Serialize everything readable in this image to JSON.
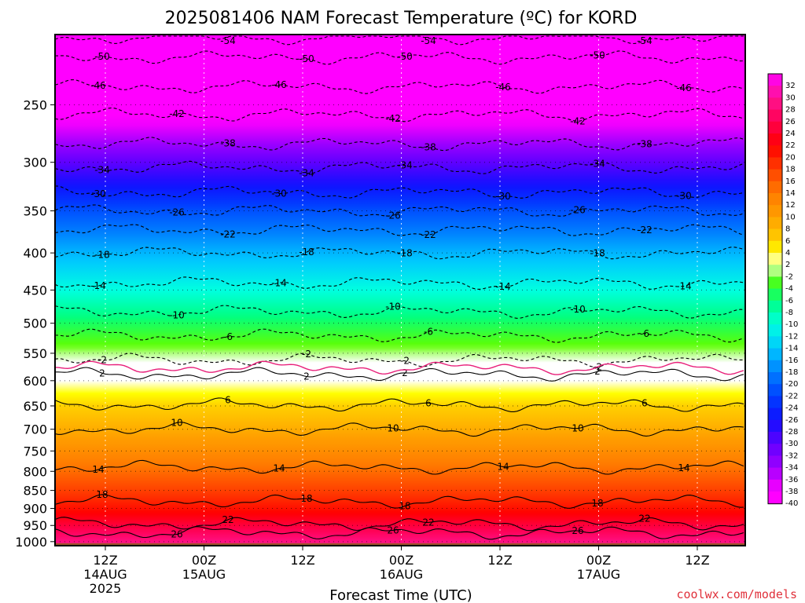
{
  "chart_data": {
    "type": "heatmap",
    "title": "2025081406 NAM Forecast Temperature (ºC) for KORD",
    "xlabel": "Forecast Time (UTC)",
    "ylabel": "",
    "credit": "coolwx.com/models",
    "y_axis": {
      "scale": "log-pressure",
      "range_hpa": [
        1013,
        200
      ],
      "ticks": [
        "250",
        "300",
        "350",
        "400",
        "450",
        "500",
        "550",
        "600",
        "650",
        "700",
        "750",
        "800",
        "850",
        "900",
        "950",
        "1000"
      ]
    },
    "x_axis": {
      "ticks": [
        {
          "time": "12Z",
          "date": "14AUG",
          "year": "2025"
        },
        {
          "time": "00Z",
          "date": "15AUG",
          "year": ""
        },
        {
          "time": "12Z",
          "date": "",
          "year": ""
        },
        {
          "time": "00Z",
          "date": "16AUG",
          "year": ""
        },
        {
          "time": "12Z",
          "date": "",
          "year": ""
        },
        {
          "time": "00Z",
          "date": "17AUG",
          "year": ""
        },
        {
          "time": "12Z",
          "date": "",
          "year": ""
        }
      ]
    },
    "colorbar": {
      "labels": [
        "32",
        "30",
        "28",
        "26",
        "24",
        "22",
        "20",
        "18",
        "16",
        "14",
        "12",
        "10",
        "8",
        "6",
        "4",
        "2",
        "-2",
        "-4",
        "-6",
        "-8",
        "-10",
        "-12",
        "-14",
        "-16",
        "-18",
        "-20",
        "-22",
        "-24",
        "-26",
        "-28",
        "-30",
        "-32",
        "-34",
        "-36",
        "-38",
        "-40"
      ]
    },
    "profile_hpa": [
      1000,
      950,
      900,
      850,
      800,
      750,
      700,
      650,
      600,
      550,
      500,
      450,
      400,
      350,
      300,
      250,
      200
    ],
    "profile_temp_c": [
      27,
      23,
      19,
      16,
      13,
      10,
      7,
      4,
      0,
      -3,
      -7,
      -12,
      -17,
      -23,
      -32,
      -43,
      -54
    ],
    "contours_solid": [
      {
        "label": "2",
        "hpa": 588
      },
      {
        "label": "6",
        "hpa": 648
      },
      {
        "label": "10",
        "hpa": 700
      },
      {
        "label": "14",
        "hpa": 790
      },
      {
        "label": "18",
        "hpa": 880
      },
      {
        "label": "22",
        "hpa": 945
      },
      {
        "label": "26",
        "hpa": 972
      }
    ],
    "contours_dashed": [
      {
        "label": "-2",
        "hpa": 562
      },
      {
        "label": "-6",
        "hpa": 520
      },
      {
        "label": "-10",
        "hpa": 482
      },
      {
        "label": "-14",
        "hpa": 440
      },
      {
        "label": "-18",
        "hpa": 400
      },
      {
        "label": "-22",
        "hpa": 372
      },
      {
        "label": "-26",
        "hpa": 350
      },
      {
        "label": "-30",
        "hpa": 330
      },
      {
        "label": "-34",
        "hpa": 305
      },
      {
        "label": "-38",
        "hpa": 283
      },
      {
        "label": "-42",
        "hpa": 258
      },
      {
        "label": "-46",
        "hpa": 236
      },
      {
        "label": "-50",
        "hpa": 215
      },
      {
        "label": "-54",
        "hpa": 202
      }
    ],
    "freezing_line_color": "#e8207a",
    "ground_color": "#a0522d"
  }
}
